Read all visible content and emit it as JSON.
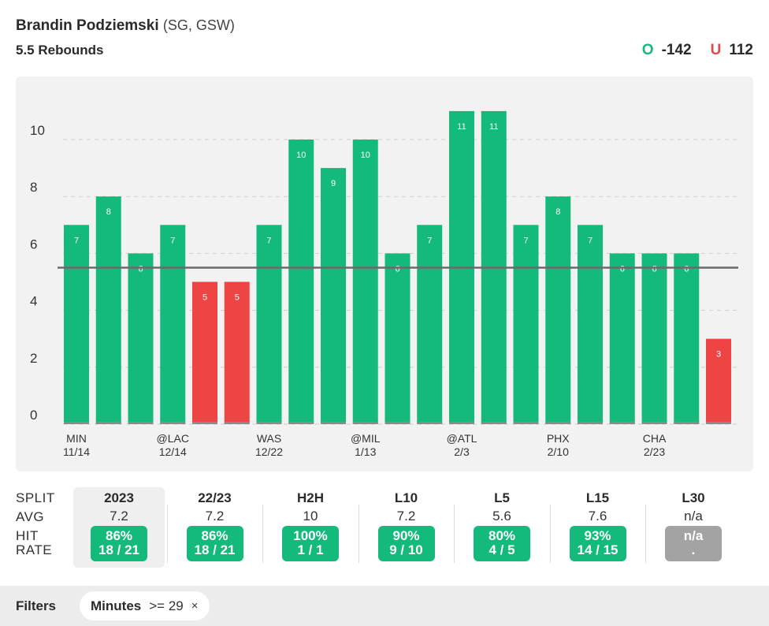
{
  "header": {
    "player_name": "Brandin Podziemski",
    "player_meta": "(SG, GSW)",
    "prop_line": "5.5 Rebounds",
    "over_letter": "O",
    "over_odds": "-142",
    "under_letter": "U",
    "under_odds": "112"
  },
  "colors": {
    "over": "#14b97c",
    "under": "#ef4444",
    "na": "#a3a3a3",
    "line": "#6b6b6b"
  },
  "chart_data": {
    "type": "bar",
    "threshold": 5.5,
    "ylim": [
      0,
      12
    ],
    "yticks": [
      0,
      2,
      4,
      6,
      8,
      10
    ],
    "grid": true,
    "values": [
      7,
      8,
      6,
      7,
      5,
      5,
      7,
      10,
      9,
      10,
      6,
      7,
      11,
      11,
      7,
      8,
      7,
      6,
      6,
      6,
      3
    ],
    "data_labels": [
      "7",
      "8",
      "6",
      "7",
      "5",
      "5",
      "7",
      "10",
      "9",
      "10",
      "6",
      "7",
      "11",
      "11",
      "7",
      "8",
      "7",
      "6",
      "6",
      "6",
      "3"
    ],
    "x_labels": [
      {
        "index": 0,
        "team": "MIN",
        "date": "11/14"
      },
      {
        "index": 3,
        "team": "@LAC",
        "date": "12/14"
      },
      {
        "index": 6,
        "team": "WAS",
        "date": "12/22"
      },
      {
        "index": 9,
        "team": "@MIL",
        "date": "1/13"
      },
      {
        "index": 12,
        "team": "@ATL",
        "date": "2/3"
      },
      {
        "index": 15,
        "team": "PHX",
        "date": "2/10"
      },
      {
        "index": 18,
        "team": "CHA",
        "date": "2/23"
      }
    ]
  },
  "splits": {
    "labels": {
      "split": "SPLIT",
      "avg": "AVG",
      "hit": "HIT",
      "rate": "RATE"
    },
    "columns": [
      {
        "name": "2023",
        "avg": "7.2",
        "pct": "86%",
        "count": "18 / 21",
        "selected": true,
        "na": false
      },
      {
        "name": "22/23",
        "avg": "7.2",
        "pct": "86%",
        "count": "18 / 21",
        "selected": false,
        "na": false
      },
      {
        "name": "H2H",
        "avg": "10",
        "pct": "100%",
        "count": "1 / 1",
        "selected": false,
        "na": false
      },
      {
        "name": "L10",
        "avg": "7.2",
        "pct": "90%",
        "count": "9 / 10",
        "selected": false,
        "na": false
      },
      {
        "name": "L5",
        "avg": "5.6",
        "pct": "80%",
        "count": "4 / 5",
        "selected": false,
        "na": false
      },
      {
        "name": "L15",
        "avg": "7.6",
        "pct": "93%",
        "count": "14 / 15",
        "selected": false,
        "na": false
      },
      {
        "name": "L30",
        "avg": "n/a",
        "pct": "n/a",
        "count": ".",
        "selected": false,
        "na": true
      }
    ]
  },
  "filters": {
    "label": "Filters",
    "chip_name": "Minutes",
    "chip_value": ">= 29",
    "chip_close": "×"
  }
}
